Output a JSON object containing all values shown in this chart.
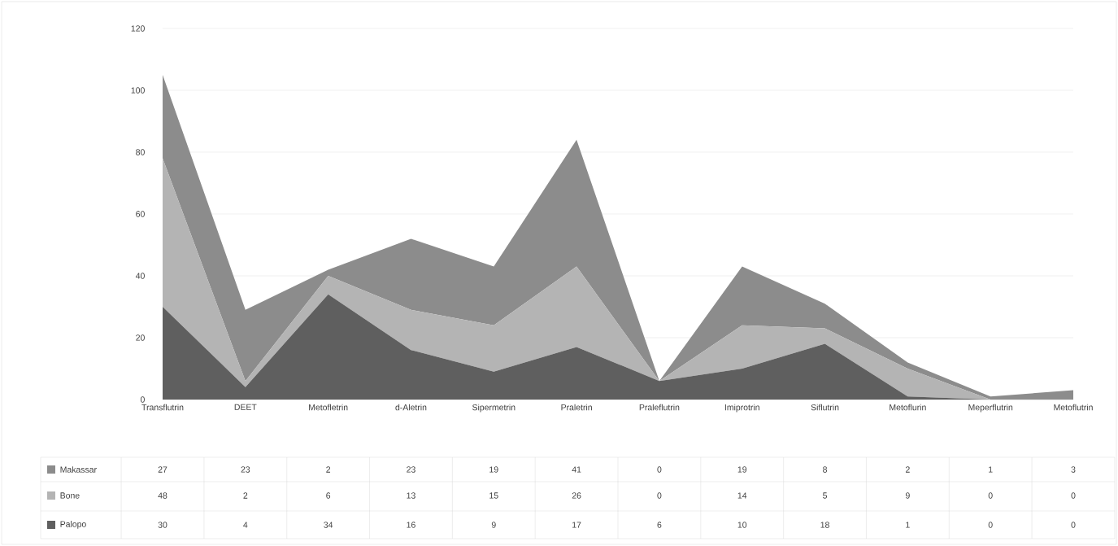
{
  "chart_data": {
    "type": "area",
    "stacked": true,
    "categories": [
      "Transflutrin",
      "DEET",
      "Metofletrin",
      "d-Aletrin",
      "Sipermetrin",
      "Praletrin",
      "Praleflutrin",
      "Imiprotrin",
      "Siflutrin",
      "Metoflurin",
      "Meperflutrin",
      "Metoflutrin"
    ],
    "series": [
      {
        "name": "Palopo",
        "color": "#5f5f5f",
        "values": [
          30,
          4,
          34,
          16,
          9,
          17,
          6,
          10,
          18,
          1,
          0,
          0
        ]
      },
      {
        "name": "Bone",
        "color": "#b4b4b4",
        "values": [
          48,
          2,
          6,
          13,
          15,
          26,
          0,
          14,
          5,
          9,
          0,
          0
        ]
      },
      {
        "name": "Makassar",
        "color": "#8c8c8c",
        "values": [
          27,
          23,
          2,
          23,
          19,
          41,
          0,
          19,
          8,
          2,
          1,
          3
        ]
      }
    ],
    "ylim": [
      0,
      120
    ],
    "yticks": [
      0,
      20,
      40,
      60,
      80,
      100,
      120
    ],
    "grid": "y",
    "legend": "bottom left",
    "data_labels": true
  }
}
